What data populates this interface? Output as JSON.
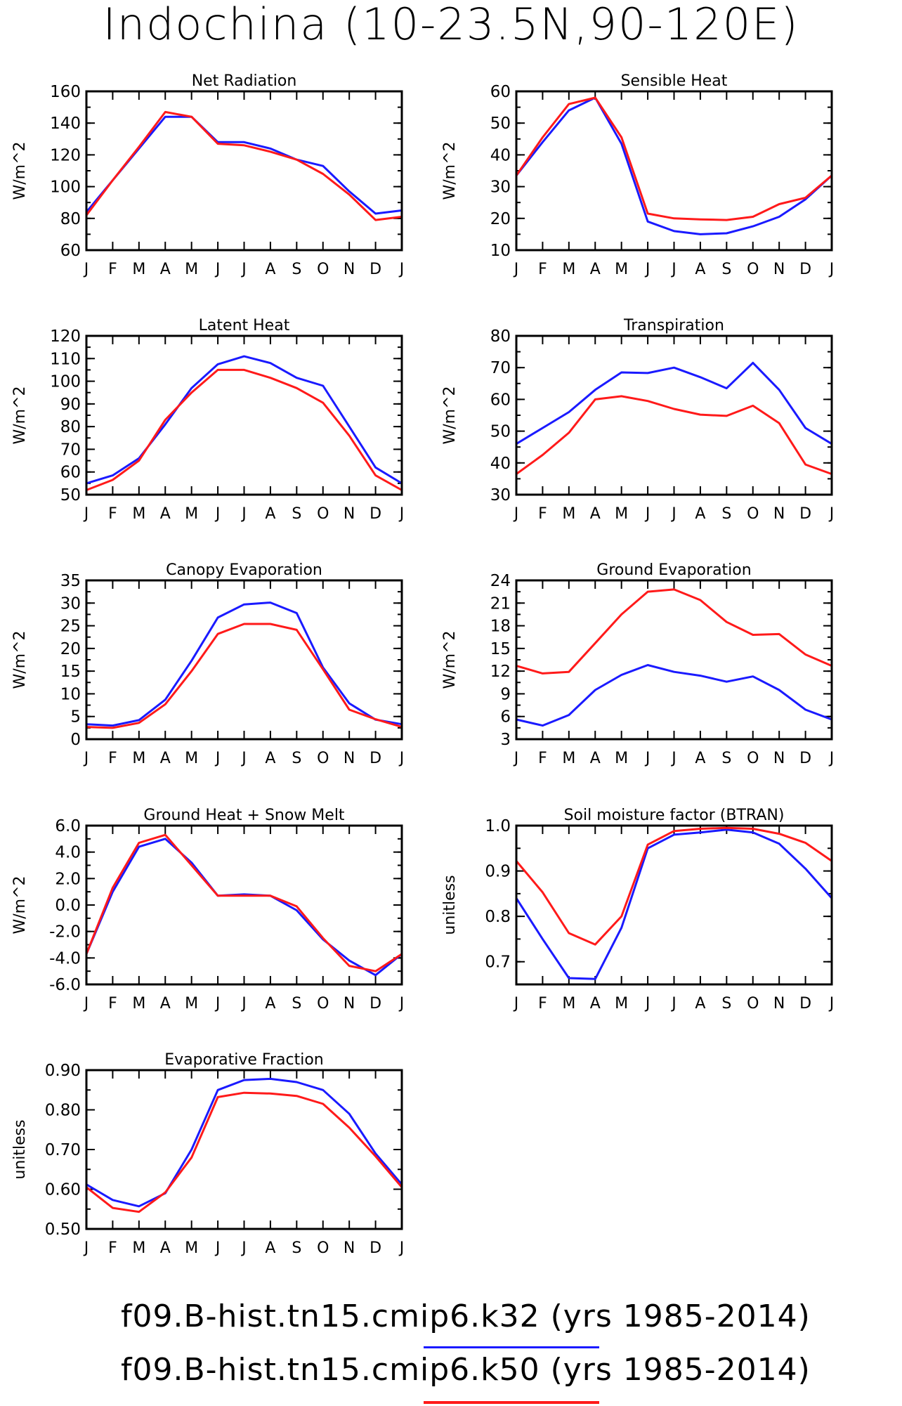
{
  "title": "Indochina (10-23.5N,90-120E)",
  "colors": {
    "k32": "#1a1aff",
    "k50": "#ff1a1a"
  },
  "legend": [
    {
      "name": "f09.B-hist.tn15.cmip6.k32",
      "suffix": " (yrs 1985-2014)",
      "color": "#1a1aff"
    },
    {
      "name": "f09.B-hist.tn15.cmip6.k50",
      "suffix": " (yrs 1985-2014)",
      "color": "#ff1a1a"
    }
  ],
  "chart_data": [
    {
      "type": "line",
      "title": "Net Radiation",
      "ylabel": "W/m^2",
      "categories": [
        "J",
        "F",
        "M",
        "A",
        "M",
        "J",
        "J",
        "A",
        "S",
        "O",
        "N",
        "D",
        "J"
      ],
      "ylim": [
        60,
        160
      ],
      "yticks": [
        60,
        80,
        100,
        120,
        140,
        160
      ],
      "yminor": 10,
      "series": [
        {
          "name": "f09.B-hist.tn15.cmip6.k32",
          "color": "#1a1aff",
          "values": [
            84,
            104,
            124,
            144,
            144,
            128,
            128,
            124,
            117,
            113,
            97,
            83,
            85
          ]
        },
        {
          "name": "f09.B-hist.tn15.cmip6.k50",
          "color": "#ff1a1a",
          "values": [
            82,
            104,
            125,
            147,
            144,
            127,
            126,
            122,
            117,
            108,
            95,
            79,
            81
          ]
        }
      ]
    },
    {
      "type": "line",
      "title": "Sensible Heat",
      "ylabel": "W/m^2",
      "categories": [
        "J",
        "F",
        "M",
        "A",
        "M",
        "J",
        "J",
        "A",
        "S",
        "O",
        "N",
        "D",
        "J"
      ],
      "ylim": [
        10,
        60
      ],
      "yticks": [
        10,
        20,
        30,
        40,
        50,
        60
      ],
      "yminor": 5,
      "series": [
        {
          "name": "f09.B-hist.tn15.cmip6.k32",
          "color": "#1a1aff",
          "values": [
            33.5,
            44,
            54,
            58,
            43.5,
            19,
            16,
            15,
            15.3,
            17.5,
            20.5,
            26,
            33.5
          ]
        },
        {
          "name": "f09.B-hist.tn15.cmip6.k50",
          "color": "#ff1a1a",
          "values": [
            33.5,
            45.5,
            56,
            58,
            45.5,
            21.5,
            20,
            19.7,
            19.5,
            20.5,
            24.5,
            26.5,
            33.5
          ]
        }
      ]
    },
    {
      "type": "line",
      "title": "Latent Heat",
      "ylabel": "W/m^2",
      "categories": [
        "J",
        "F",
        "M",
        "A",
        "M",
        "J",
        "J",
        "A",
        "S",
        "O",
        "N",
        "D",
        "J"
      ],
      "ylim": [
        50,
        120
      ],
      "yticks": [
        50,
        60,
        70,
        80,
        90,
        100,
        110,
        120
      ],
      "yminor": 5,
      "series": [
        {
          "name": "f09.B-hist.tn15.cmip6.k32",
          "color": "#1a1aff",
          "values": [
            55,
            58.5,
            66,
            81,
            97,
            107.5,
            111,
            108,
            101.5,
            98,
            80,
            62,
            55
          ]
        },
        {
          "name": "f09.B-hist.tn15.cmip6.k50",
          "color": "#ff1a1a",
          "values": [
            52,
            56.5,
            65,
            83,
            95,
            105,
            105,
            101.5,
            97,
            90.5,
            76,
            58.5,
            52
          ]
        }
      ]
    },
    {
      "type": "line",
      "title": "Transpiration",
      "ylabel": "W/m^2",
      "categories": [
        "J",
        "F",
        "M",
        "A",
        "M",
        "J",
        "J",
        "A",
        "S",
        "O",
        "N",
        "D",
        "J"
      ],
      "ylim": [
        30,
        80
      ],
      "yticks": [
        30,
        40,
        50,
        60,
        70,
        80
      ],
      "yminor": 5,
      "series": [
        {
          "name": "f09.B-hist.tn15.cmip6.k32",
          "color": "#1a1aff",
          "values": [
            46,
            51,
            56,
            63,
            68.5,
            68.3,
            70,
            67,
            63.5,
            71.5,
            63,
            51,
            46
          ]
        },
        {
          "name": "f09.B-hist.tn15.cmip6.k50",
          "color": "#ff1a1a",
          "values": [
            36.5,
            42.5,
            49.5,
            60,
            61,
            59.5,
            57,
            55.2,
            54.8,
            58,
            52.5,
            39.5,
            36.5
          ]
        }
      ]
    },
    {
      "type": "line",
      "title": "Canopy Evaporation",
      "ylabel": "W/m^2",
      "categories": [
        "J",
        "F",
        "M",
        "A",
        "M",
        "J",
        "J",
        "A",
        "S",
        "O",
        "N",
        "D",
        "J"
      ],
      "ylim": [
        0,
        35
      ],
      "yticks": [
        0,
        5,
        10,
        15,
        20,
        25,
        30,
        35
      ],
      "yminor": 2.5,
      "series": [
        {
          "name": "f09.B-hist.tn15.cmip6.k32",
          "color": "#1a1aff",
          "values": [
            3.3,
            3.0,
            4.2,
            8.7,
            17.3,
            26.8,
            29.7,
            30.1,
            27.8,
            15.8,
            7.9,
            4.3,
            3.3
          ]
        },
        {
          "name": "f09.B-hist.tn15.cmip6.k50",
          "color": "#ff1a1a",
          "values": [
            2.7,
            2.5,
            3.6,
            7.7,
            15.0,
            23.2,
            25.4,
            25.4,
            24.1,
            15.4,
            6.5,
            4.4,
            2.7
          ]
        }
      ]
    },
    {
      "type": "line",
      "title": "Ground Evaporation",
      "ylabel": "W/m^2",
      "categories": [
        "J",
        "F",
        "M",
        "A",
        "M",
        "J",
        "J",
        "A",
        "S",
        "O",
        "N",
        "D",
        "J"
      ],
      "ylim": [
        3,
        24
      ],
      "yticks": [
        3,
        6,
        9,
        12,
        15,
        18,
        21,
        24
      ],
      "yminor": 1.5,
      "series": [
        {
          "name": "f09.B-hist.tn15.cmip6.k32",
          "color": "#1a1aff",
          "values": [
            5.6,
            4.8,
            6.2,
            9.5,
            11.5,
            12.8,
            11.9,
            11.4,
            10.6,
            11.3,
            9.5,
            6.9,
            5.6
          ]
        },
        {
          "name": "f09.B-hist.tn15.cmip6.k50",
          "color": "#ff1a1a",
          "values": [
            12.7,
            11.7,
            11.9,
            15.7,
            19.5,
            22.5,
            22.8,
            21.4,
            18.5,
            16.8,
            16.9,
            14.2,
            12.7
          ]
        }
      ]
    },
    {
      "type": "line",
      "title": "Ground Heat + Snow Melt",
      "ylabel": "W/m^2",
      "categories": [
        "J",
        "F",
        "M",
        "A",
        "M",
        "J",
        "J",
        "A",
        "S",
        "O",
        "N",
        "D",
        "J"
      ],
      "ylim": [
        -6,
        6
      ],
      "yticks": [
        -6,
        -4,
        -2,
        0,
        2,
        4,
        6
      ],
      "ytick_labels": [
        "-6.0",
        "-4.0",
        "-2.0",
        "0.0",
        "2.0",
        "4.0",
        "6.0"
      ],
      "yminor": 1,
      "series": [
        {
          "name": "f09.B-hist.tn15.cmip6.k32",
          "color": "#1a1aff",
          "values": [
            -3.7,
            1.0,
            4.4,
            5.0,
            3.2,
            0.7,
            0.8,
            0.7,
            -0.4,
            -2.6,
            -4.2,
            -5.3,
            -3.7
          ]
        },
        {
          "name": "f09.B-hist.tn15.cmip6.k50",
          "color": "#ff1a1a",
          "values": [
            -3.7,
            1.3,
            4.7,
            5.3,
            3.0,
            0.7,
            0.7,
            0.7,
            -0.1,
            -2.5,
            -4.6,
            -5.0,
            -3.7
          ]
        }
      ]
    },
    {
      "type": "line",
      "title": "Soil moisture factor (BTRAN)",
      "ylabel": "unitless",
      "categories": [
        "J",
        "F",
        "M",
        "A",
        "M",
        "J",
        "J",
        "A",
        "S",
        "O",
        "N",
        "D",
        "J"
      ],
      "ylim": [
        0.65,
        1.0
      ],
      "yticks": [
        0.7,
        0.8,
        0.9,
        1.0
      ],
      "ytick_labels": [
        "0.7",
        "0.8",
        "0.9",
        "1.0"
      ],
      "yminor": 0.05,
      "series": [
        {
          "name": "f09.B-hist.tn15.cmip6.k32",
          "color": "#1a1aff",
          "values": [
            0.84,
            0.75,
            0.664,
            0.662,
            0.775,
            0.95,
            0.98,
            0.985,
            0.991,
            0.985,
            0.96,
            0.905,
            0.84
          ]
        },
        {
          "name": "f09.B-hist.tn15.cmip6.k50",
          "color": "#ff1a1a",
          "values": [
            0.922,
            0.853,
            0.763,
            0.738,
            0.8,
            0.958,
            0.988,
            0.993,
            0.995,
            0.993,
            0.982,
            0.962,
            0.922
          ]
        }
      ]
    },
    {
      "type": "line",
      "title": "Evaporative Fraction",
      "ylabel": "unitless",
      "categories": [
        "J",
        "F",
        "M",
        "A",
        "M",
        "J",
        "J",
        "A",
        "S",
        "O",
        "N",
        "D",
        "J"
      ],
      "ylim": [
        0.5,
        0.9
      ],
      "yticks": [
        0.5,
        0.6,
        0.7,
        0.8,
        0.9
      ],
      "ytick_labels": [
        "0.50",
        "0.60",
        "0.70",
        "0.80",
        "0.90"
      ],
      "yminor": 0.05,
      "series": [
        {
          "name": "f09.B-hist.tn15.cmip6.k32",
          "color": "#1a1aff",
          "values": [
            0.612,
            0.573,
            0.557,
            0.59,
            0.7,
            0.85,
            0.875,
            0.878,
            0.87,
            0.85,
            0.79,
            0.69,
            0.612
          ]
        },
        {
          "name": "f09.B-hist.tn15.cmip6.k50",
          "color": "#ff1a1a",
          "values": [
            0.605,
            0.553,
            0.543,
            0.592,
            0.68,
            0.832,
            0.843,
            0.841,
            0.835,
            0.815,
            0.755,
            0.683,
            0.605
          ]
        }
      ]
    }
  ]
}
